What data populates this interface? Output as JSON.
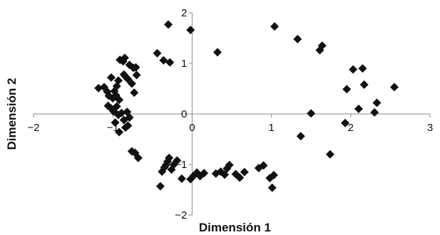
{
  "chart_data": {
    "type": "scatter",
    "title": "",
    "xlabel": "Dimensión 1",
    "ylabel": "Dimensión 2",
    "xlim": [
      -2,
      3
    ],
    "ylim": [
      -2,
      2
    ],
    "x_ticks": [
      "−2",
      "−1",
      "0",
      "1",
      "2",
      "3"
    ],
    "y_ticks": [
      "2",
      "1",
      "0",
      "−1",
      "−2"
    ],
    "grid": false,
    "legend": "none",
    "marker": "diamond",
    "marker_color": "#111111",
    "points": [
      {
        "x": -1.18,
        "y": 0.51
      },
      {
        "x": -1.11,
        "y": 0.53
      },
      {
        "x": -1.07,
        "y": 0.44
      },
      {
        "x": -1.05,
        "y": 0.36
      },
      {
        "x": -1.02,
        "y": 0.72
      },
      {
        "x": -1.0,
        "y": 0.31
      },
      {
        "x": -0.98,
        "y": 0.45
      },
      {
        "x": -0.96,
        "y": 0.37
      },
      {
        "x": -0.95,
        "y": 0.55
      },
      {
        "x": -0.93,
        "y": 0.66
      },
      {
        "x": -0.92,
        "y": 0.28
      },
      {
        "x": -0.91,
        "y": 1.07
      },
      {
        "x": -0.87,
        "y": 1.04
      },
      {
        "x": -0.86,
        "y": 0.78
      },
      {
        "x": -0.85,
        "y": 1.11
      },
      {
        "x": -0.84,
        "y": 0.74
      },
      {
        "x": -0.81,
        "y": 0.69
      },
      {
        "x": -0.79,
        "y": 0.97
      },
      {
        "x": -0.76,
        "y": 0.6
      },
      {
        "x": -0.74,
        "y": 0.91
      },
      {
        "x": -0.73,
        "y": 0.42
      },
      {
        "x": -0.71,
        "y": 0.92
      },
      {
        "x": -0.7,
        "y": 0.77
      },
      {
        "x": -1.06,
        "y": 0.16
      },
      {
        "x": -1.02,
        "y": 0.11
      },
      {
        "x": -0.99,
        "y": 0.05
      },
      {
        "x": -0.97,
        "y": -0.17
      },
      {
        "x": -0.95,
        "y": 0.15
      },
      {
        "x": -0.93,
        "y": -0.02
      },
      {
        "x": -0.92,
        "y": -0.36
      },
      {
        "x": -0.89,
        "y": 0.02
      },
      {
        "x": -0.86,
        "y": -0.12
      },
      {
        "x": -0.84,
        "y": -0.27
      },
      {
        "x": -0.82,
        "y": 0.04
      },
      {
        "x": -0.81,
        "y": -0.23
      },
      {
        "x": -0.79,
        "y": -0.07
      },
      {
        "x": -0.76,
        "y": -0.74
      },
      {
        "x": -0.72,
        "y": -0.77
      },
      {
        "x": -0.68,
        "y": -0.87
      },
      {
        "x": -0.44,
        "y": 1.2
      },
      {
        "x": -0.36,
        "y": 1.06
      },
      {
        "x": -0.28,
        "y": 1.02
      },
      {
        "x": -0.3,
        "y": 1.77
      },
      {
        "x": -0.02,
        "y": 1.66
      },
      {
        "x": 0.32,
        "y": 1.22
      },
      {
        "x": -0.4,
        "y": -1.43
      },
      {
        "x": -0.38,
        "y": -1.14
      },
      {
        "x": -0.35,
        "y": -1.06
      },
      {
        "x": -0.33,
        "y": -1.01
      },
      {
        "x": -0.31,
        "y": -0.94
      },
      {
        "x": -0.29,
        "y": -0.87
      },
      {
        "x": -0.26,
        "y": -1.1
      },
      {
        "x": -0.23,
        "y": -1.0
      },
      {
        "x": -0.19,
        "y": -0.92
      },
      {
        "x": -0.13,
        "y": -1.28
      },
      {
        "x": -0.02,
        "y": -1.29
      },
      {
        "x": 0.02,
        "y": -1.22
      },
      {
        "x": 0.06,
        "y": -1.16
      },
      {
        "x": 0.1,
        "y": -1.23
      },
      {
        "x": 0.15,
        "y": -1.17
      },
      {
        "x": 0.3,
        "y": -1.18
      },
      {
        "x": 0.36,
        "y": -1.14
      },
      {
        "x": 0.41,
        "y": -1.2
      },
      {
        "x": 0.44,
        "y": -1.08
      },
      {
        "x": 0.47,
        "y": -1.01
      },
      {
        "x": 0.55,
        "y": -1.19
      },
      {
        "x": 0.6,
        "y": -1.26
      },
      {
        "x": 0.66,
        "y": -1.15
      },
      {
        "x": 0.84,
        "y": -1.07
      },
      {
        "x": 0.9,
        "y": -1.02
      },
      {
        "x": 0.98,
        "y": -1.27
      },
      {
        "x": 1.01,
        "y": -1.46
      },
      {
        "x": 1.03,
        "y": -1.21
      },
      {
        "x": 1.04,
        "y": 1.73
      },
      {
        "x": 1.33,
        "y": 1.48
      },
      {
        "x": 1.61,
        "y": 1.26
      },
      {
        "x": 1.64,
        "y": 1.35
      },
      {
        "x": 1.37,
        "y": -0.44
      },
      {
        "x": 1.5,
        "y": 0.01
      },
      {
        "x": 1.74,
        "y": -0.8
      },
      {
        "x": 1.93,
        "y": -0.18
      },
      {
        "x": 1.95,
        "y": 0.49
      },
      {
        "x": 2.03,
        "y": 0.88
      },
      {
        "x": 2.1,
        "y": 0.1
      },
      {
        "x": 2.15,
        "y": 0.9
      },
      {
        "x": 2.17,
        "y": 0.58
      },
      {
        "x": 2.3,
        "y": 0.03
      },
      {
        "x": 2.33,
        "y": 0.22
      },
      {
        "x": 2.55,
        "y": 0.53
      }
    ]
  }
}
